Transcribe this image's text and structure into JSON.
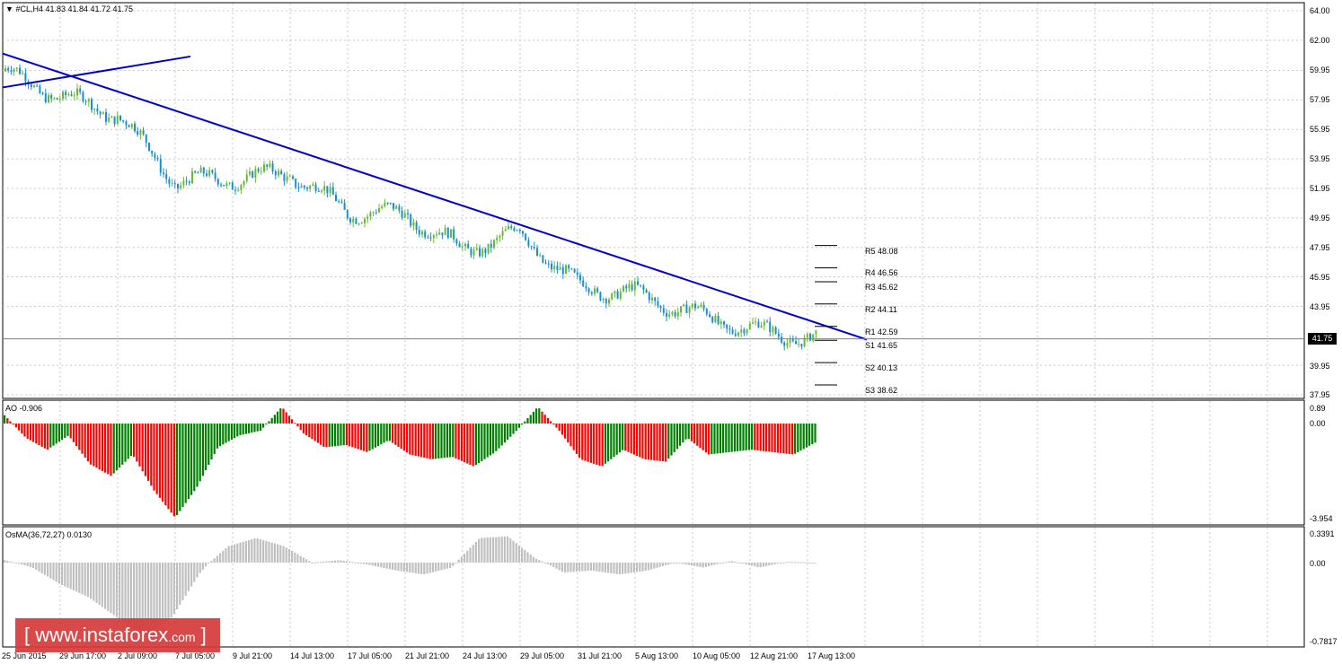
{
  "header": {
    "symbol_label": "#CL,H4  41.83 41.84 41.72 41.75"
  },
  "main_panel": {
    "price_labels": [
      "64.00",
      "62.00",
      "59.95",
      "57.95",
      "55.95",
      "53.95",
      "51.95",
      "49.95",
      "47.95",
      "45.95",
      "43.95",
      "39.95",
      "37.95"
    ],
    "current_price": "41.75",
    "pivot_labels": [
      "R5 48.08",
      "R4 46.56",
      "R3 45.62",
      "R2 44.11",
      "R1 42.59",
      "S1 41.65",
      "S2 40.13",
      "S3 38.62"
    ]
  },
  "ao_panel": {
    "label": "AO -0.906",
    "scale_labels": [
      "0.89",
      "0.00",
      "-3.954"
    ],
    "colors": {
      "up": "#008000",
      "down": "#ff0000"
    }
  },
  "osma_panel": {
    "label": "OsMA(36,72,27) 0.0130",
    "scale_labels": [
      "0.3391",
      "0.00",
      "-0.7817"
    ],
    "color": "#c0c0c0"
  },
  "time_labels": [
    "25 Jun 2015",
    "29 Jun 17:00",
    "2 Jul 09:00",
    "7 Jul 05:00",
    "9 Jul 21:00",
    "14 Jul 13:00",
    "17 Jul 05:00",
    "21 Jul 21:00",
    "24 Jul 13:00",
    "29 Jul 05:00",
    "31 Jul 21:00",
    "5 Aug 13:00",
    "10 Aug 05:00",
    "12 Aug 21:00",
    "17 Aug 13:00"
  ],
  "watermark": {
    "left": "[",
    "brand": "www.instaforex",
    "domain": ".com",
    "right": "]"
  },
  "colors": {
    "trendline": "#0000cd",
    "candle_up": "#66bb33",
    "candle_down": "#1a8fd0",
    "grid": "#c8c8c8"
  },
  "chart_data": {
    "type": "candlestick",
    "symbol": "#CL",
    "timeframe": "H4",
    "last_bar": {
      "open": 41.83,
      "high": 41.84,
      "low": 41.72,
      "close": 41.75
    },
    "close_path": [
      {
        "t": "25 Jun 2015",
        "price": 59.9
      },
      {
        "t": "29 Jun 17:00",
        "price": 58.2
      },
      {
        "t": "2 Jul 09:00",
        "price": 57.0
      },
      {
        "t": "7 Jul 05:00",
        "price": 52.4
      },
      {
        "t": "9 Jul 21:00",
        "price": 52.6
      },
      {
        "t": "14 Jul 13:00",
        "price": 53.0
      },
      {
        "t": "17 Jul 05:00",
        "price": 50.4
      },
      {
        "t": "21 Jul 21:00",
        "price": 50.2
      },
      {
        "t": "24 Jul 13:00",
        "price": 47.8
      },
      {
        "t": "29 Jul 05:00",
        "price": 48.9
      },
      {
        "t": "31 Jul 21:00",
        "price": 45.3
      },
      {
        "t": "5 Aug 13:00",
        "price": 44.8
      },
      {
        "t": "10 Aug 05:00",
        "price": 43.5
      },
      {
        "t": "12 Aug 21:00",
        "price": 42.4
      },
      {
        "t": "17 Aug 13:00",
        "price": 41.75
      }
    ],
    "ao": {
      "last": -0.906,
      "max": 0.89,
      "min": -3.954
    },
    "osma": {
      "last": 0.013,
      "max": 0.3391,
      "min": -0.7817
    },
    "pivots": {
      "R5": 48.08,
      "R4": 46.56,
      "R3": 45.62,
      "R2": 44.11,
      "R1": 42.59,
      "S1": 41.65,
      "S2": 40.13,
      "S3": 38.62
    },
    "trendlines": [
      {
        "from": {
          "t": "25 Jun 2015",
          "price": 61.1
        },
        "to": {
          "t": "17 Aug 13:00",
          "price": 41.7
        }
      },
      {
        "from": {
          "t": "25 Jun 2015",
          "price": 58.8
        },
        "to": {
          "t": "2 Jul 09:00",
          "price": 60.9
        }
      }
    ]
  }
}
